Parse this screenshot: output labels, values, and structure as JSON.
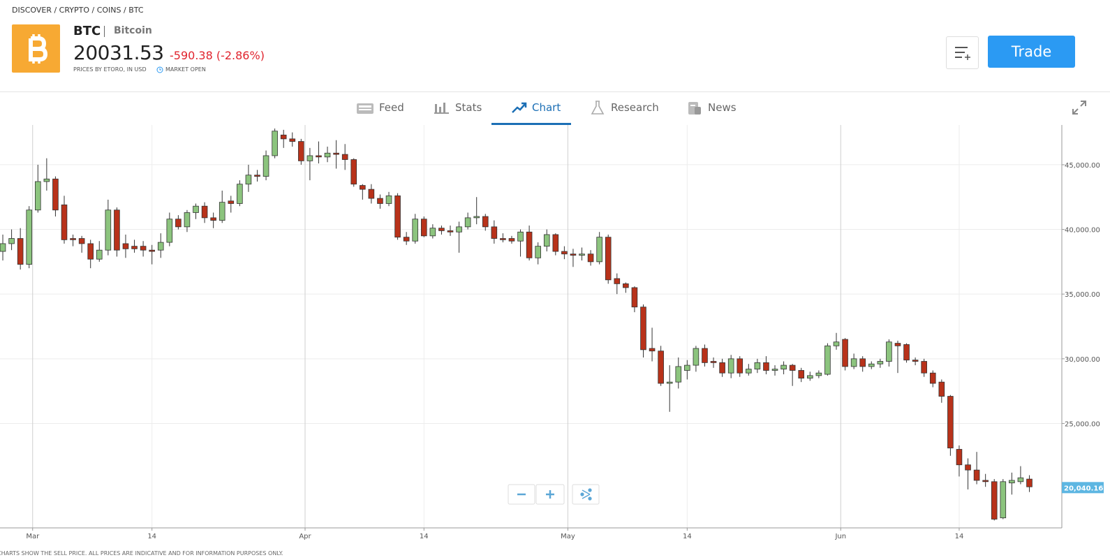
{
  "header": {
    "breadcrumb": "DISCOVER / CRYPTO / COINS / BTC",
    "symbol": "BTC",
    "name": "Bitcoin",
    "price": "20031.53",
    "change": "-590.38 (-2.86%)",
    "source": "PRICES BY ETORO, IN USD",
    "status": "MARKET OPEN",
    "trade_button": "Trade"
  },
  "tabs": [
    "Feed",
    "Stats",
    "Chart",
    "Research",
    "News"
  ],
  "chart_data": {
    "type": "candlestick",
    "open": [
      38300,
      38900,
      39300,
      37300,
      41500,
      43700,
      43900,
      41900,
      39300,
      39300,
      38900,
      37700,
      38400,
      41500,
      38900,
      38700,
      38700,
      38400,
      38400,
      39000,
      40800,
      40200,
      41300,
      41800,
      40900,
      40700,
      42200,
      42000,
      43500,
      44200,
      44100,
      45700,
      47300,
      47000,
      46800,
      45300,
      45700,
      45600,
      45900,
      45800,
      45400,
      43400,
      43100,
      42400,
      42000,
      42600,
      39400,
      39100,
      40800,
      39500,
      40100,
      39900,
      39800,
      40200,
      40900,
      41000,
      40200,
      39300,
      39300,
      39100,
      39800,
      37800,
      38700,
      39600,
      38300,
      38100,
      38000,
      38100,
      37500,
      39400,
      36200,
      35800,
      35500,
      34000,
      30800,
      30600,
      28100,
      28200,
      29100,
      29500,
      30800,
      29800,
      29700,
      28900,
      30000,
      28900,
      29200,
      29700,
      29100,
      29200,
      29500,
      29100,
      28500,
      28700,
      28800,
      31000,
      31500,
      29400,
      30000,
      29400,
      29600,
      29800,
      31200,
      31100,
      29900,
      29800,
      28900,
      28200,
      27100,
      23000,
      21800,
      21400,
      20600,
      20500,
      17700,
      20400,
      20500,
      20700
    ],
    "high": [
      39600,
      40000,
      40100,
      41800,
      45000,
      45500,
      44100,
      42600,
      39600,
      39500,
      39200,
      39100,
      42300,
      41700,
      39600,
      39200,
      39100,
      38800,
      39700,
      41300,
      41100,
      41500,
      42000,
      42100,
      41300,
      43000,
      42600,
      43800,
      45000,
      44600,
      46100,
      47800,
      47700,
      47500,
      47000,
      46300,
      46800,
      46400,
      46900,
      46600,
      45500,
      43500,
      43500,
      42700,
      42900,
      42800,
      39800,
      41200,
      41000,
      40400,
      40300,
      40300,
      40600,
      41300,
      42500,
      41200,
      40700,
      39700,
      39500,
      40000,
      40300,
      39000,
      40000,
      39700,
      38700,
      38500,
      38600,
      38400,
      39800,
      39600,
      36600,
      35900,
      35600,
      34200,
      32400,
      31000,
      29500,
      30100,
      29900,
      31000,
      31100,
      30100,
      30000,
      30300,
      30200,
      29600,
      30000,
      30200,
      29500,
      29800,
      29600,
      29300,
      29000,
      29100,
      31200,
      32000,
      31600,
      30400,
      30200,
      29800,
      30000,
      31500,
      31400,
      31200,
      30100,
      30000,
      29100,
      28400,
      27200,
      23300,
      22300,
      22800,
      21100,
      20700,
      20700,
      21200,
      21700,
      21000
    ],
    "low": [
      37600,
      38400,
      36900,
      37000,
      41300,
      43000,
      41000,
      38900,
      38700,
      38200,
      37000,
      37500,
      38000,
      37900,
      37800,
      38200,
      37900,
      37300,
      37800,
      38700,
      40000,
      39800,
      40800,
      40500,
      40100,
      40500,
      41300,
      41800,
      42900,
      43700,
      43800,
      45500,
      46300,
      46400,
      45000,
      43800,
      45100,
      45200,
      44700,
      44600,
      43300,
      42300,
      42000,
      41600,
      41800,
      39200,
      38800,
      38900,
      39400,
      39300,
      39600,
      39500,
      38200,
      40000,
      40400,
      39900,
      38900,
      39000,
      38900,
      37900,
      37600,
      37300,
      38300,
      38000,
      37700,
      37100,
      37600,
      37200,
      37300,
      35800,
      35000,
      35100,
      33600,
      30100,
      29800,
      27900,
      25900,
      27700,
      28400,
      29000,
      29400,
      29300,
      28600,
      28500,
      28600,
      28700,
      28900,
      28800,
      28700,
      28800,
      27900,
      28200,
      28300,
      28500,
      28700,
      30700,
      29100,
      29200,
      29000,
      29200,
      29300,
      29400,
      28900,
      29700,
      29500,
      28600,
      27800,
      26600,
      22500,
      20900,
      19900,
      20300,
      20100,
      17500,
      17600,
      19500,
      20300,
      19700
    ],
    "close": [
      38900,
      39300,
      37300,
      41500,
      43700,
      43900,
      41500,
      39200,
      39200,
      38900,
      37700,
      38400,
      41500,
      38400,
      38500,
      38500,
      38400,
      38300,
      39000,
      40800,
      40200,
      41300,
      41800,
      40900,
      40700,
      42100,
      42000,
      43500,
      44200,
      44100,
      45700,
      47600,
      47000,
      46800,
      45300,
      45700,
      45600,
      45900,
      45800,
      45400,
      43500,
      43100,
      42400,
      42000,
      42600,
      39400,
      39100,
      40800,
      39500,
      40100,
      39900,
      39800,
      40200,
      40900,
      41000,
      40200,
      39300,
      39200,
      39100,
      39800,
      37800,
      38700,
      39600,
      38300,
      38100,
      38000,
      38100,
      37500,
      39400,
      36100,
      35800,
      35500,
      34000,
      30700,
      30600,
      28100,
      28200,
      29400,
      29500,
      30800,
      29700,
      29700,
      28900,
      30000,
      28900,
      29200,
      29700,
      29100,
      29200,
      29500,
      29100,
      28500,
      28700,
      28900,
      31000,
      31300,
      29400,
      30000,
      29400,
      29600,
      29800,
      31300,
      31000,
      29900,
      29800,
      28900,
      28100,
      27100,
      23100,
      21800,
      21400,
      20600,
      20500,
      17600,
      20500,
      20600,
      20800,
      20100
    ],
    "up_color": "#8cc47e",
    "down_color": "#b8321a",
    "xlim": [
      -0.32,
      120.7
    ],
    "xticks": [
      {
        "value": 3.4,
        "label": "Mar"
      },
      {
        "value": 17,
        "label": "14"
      },
      {
        "value": 34.45,
        "label": "Apr"
      },
      {
        "value": 48,
        "label": "14"
      },
      {
        "value": 64.4,
        "label": "May"
      },
      {
        "value": 78,
        "label": "14"
      },
      {
        "value": 95.5,
        "label": "Jun"
      },
      {
        "value": 109,
        "label": "14"
      }
    ],
    "ylim": [
      16927,
      48073
    ],
    "yticks": [
      {
        "value": 25000,
        "label": "25,000.00"
      },
      {
        "value": 30000,
        "label": "30,000.00"
      },
      {
        "value": 35000,
        "label": "35,000.00"
      },
      {
        "value": 40000,
        "label": "40,000.00"
      },
      {
        "value": 45000,
        "label": "45,000.00"
      }
    ],
    "last_price": {
      "value": 20040.16,
      "label": "20,040.16"
    },
    "grid": true
  },
  "disclaimer": "CHARTS SHOW THE SELL PRICE. ALL PRICES ARE INDICATIVE AND FOR INFORMATION PURPOSES ONLY."
}
